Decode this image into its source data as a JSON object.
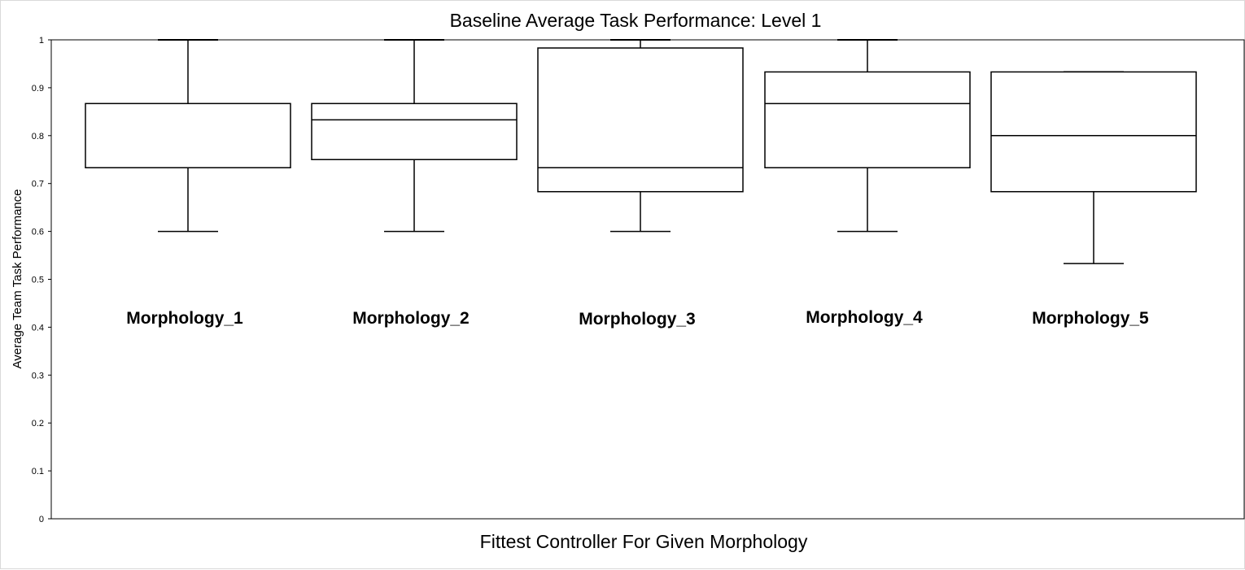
{
  "chart_data": {
    "type": "box",
    "title": "Baseline Average Task Performance: Level 1",
    "xlabel": "Fittest Controller For Given Morphology",
    "ylabel": "Average Team Task Performance",
    "ylim": [
      0,
      1
    ],
    "yticks": [
      "0",
      "0.1",
      "0.2",
      "0.3",
      "0.4",
      "0.5",
      "0.6",
      "0.7",
      "0.8",
      "0.9",
      "1"
    ],
    "grid": false,
    "legend": "none",
    "categories": [
      "Morphology_1",
      "Morphology_2",
      "Morphology_3",
      "Morphology_4",
      "Morphology_5"
    ],
    "series": [
      {
        "boxes": [
          {
            "min": 0.6,
            "q1": 0.733,
            "median": 0.733,
            "q3": 0.867,
            "max": 1.0
          },
          {
            "min": 0.6,
            "q1": 0.75,
            "median": 0.833,
            "q3": 0.867,
            "max": 1.0
          },
          {
            "min": 0.6,
            "q1": 0.683,
            "median": 0.733,
            "q3": 0.983,
            "max": 1.0
          },
          {
            "min": 0.6,
            "q1": 0.733,
            "median": 0.867,
            "q3": 0.933,
            "max": 1.0
          },
          {
            "min": 0.533,
            "q1": 0.683,
            "median": 0.8,
            "q3": 0.933,
            "max": 0.933
          }
        ]
      }
    ],
    "colors": {
      "line": "#000000",
      "box_fill": "#ffffff",
      "background": "#ffffff"
    }
  }
}
